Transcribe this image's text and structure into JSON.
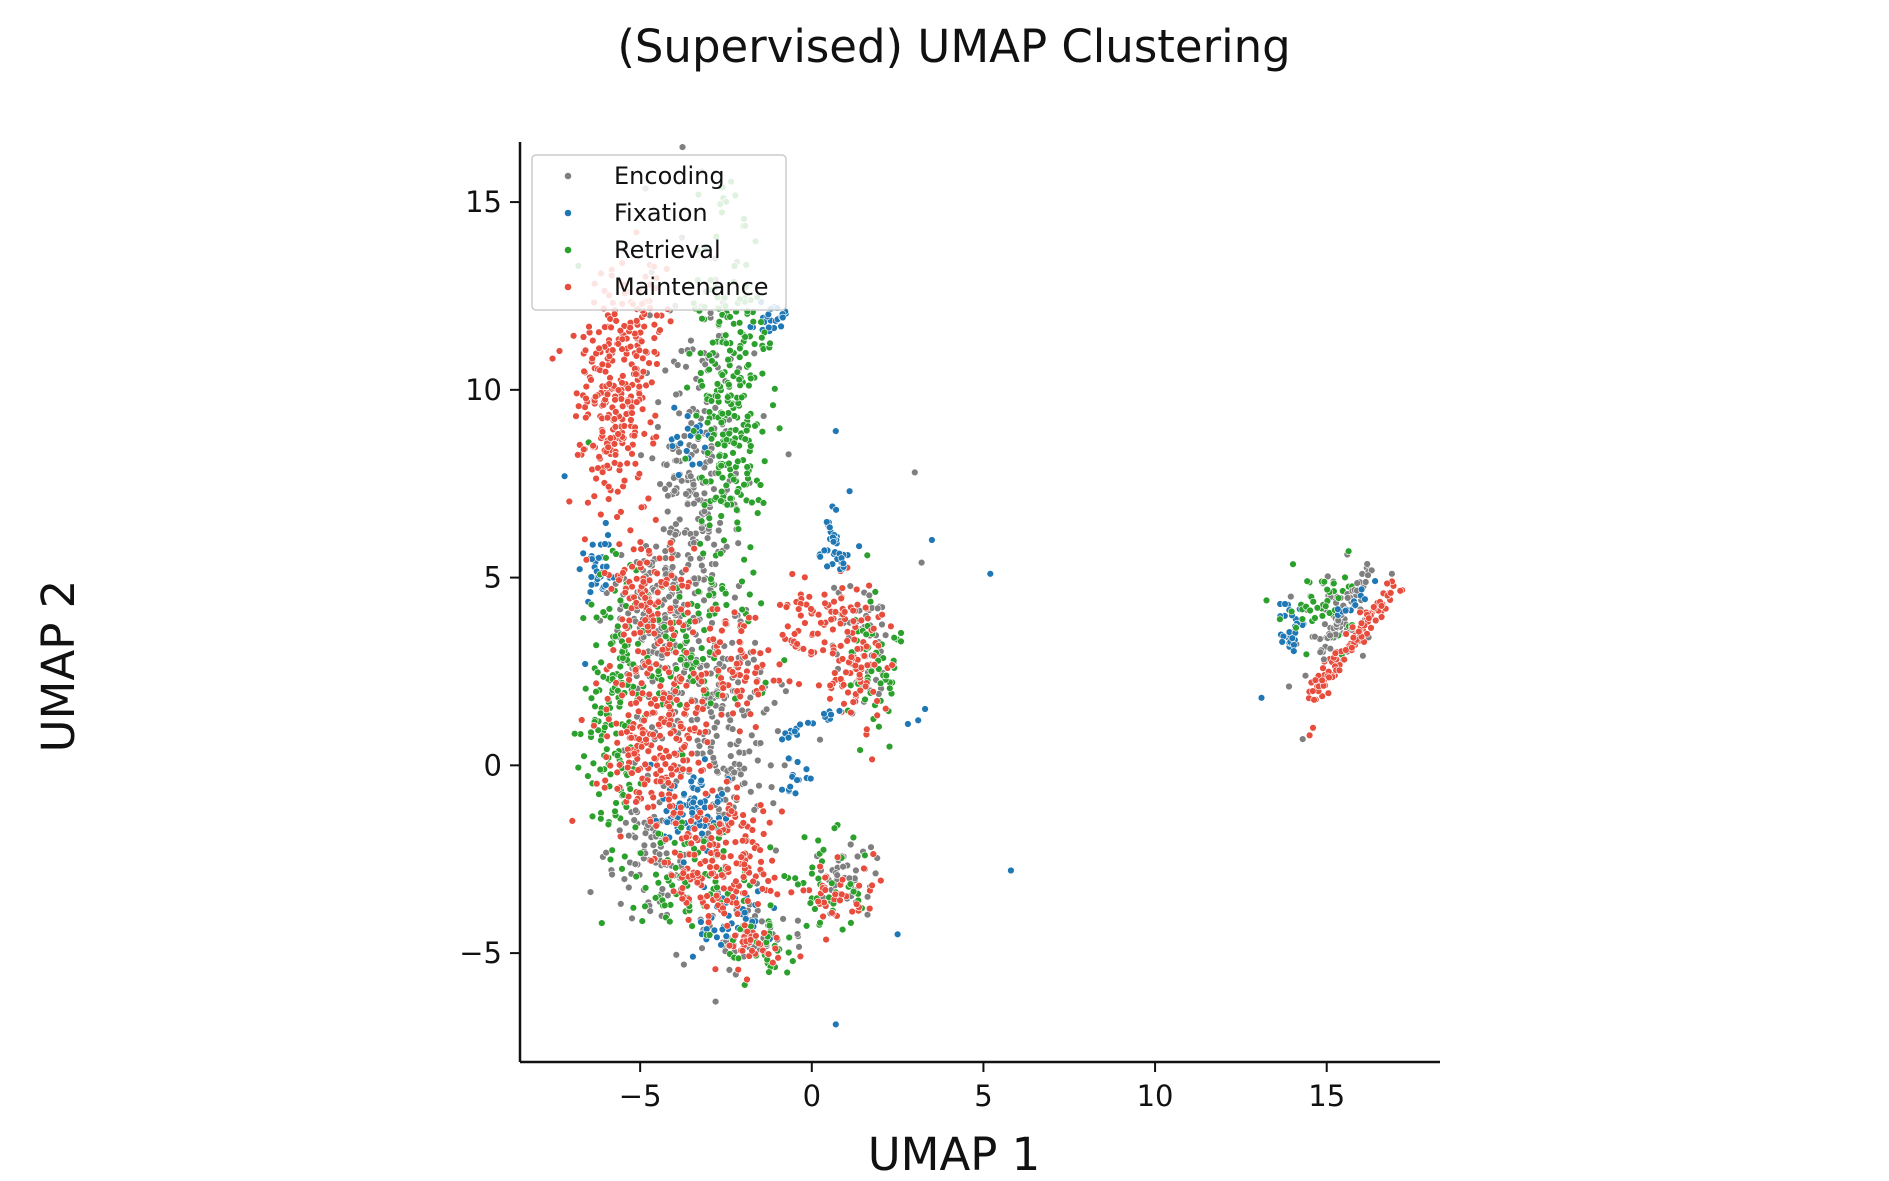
{
  "chart_data": {
    "type": "scatter",
    "title": "(Supervised) UMAP Clustering",
    "xlabel": "UMAP 1",
    "ylabel": "UMAP 2",
    "xlim": [
      -8.5,
      18.3
    ],
    "ylim": [
      -7.9,
      16.6
    ],
    "xticks": [
      -5,
      0,
      5,
      10,
      15
    ],
    "yticks": [
      -5,
      0,
      5,
      10,
      15
    ],
    "xtick_labels": [
      "−5",
      "0",
      "5",
      "10",
      "15"
    ],
    "ytick_labels": [
      "−5",
      "0",
      "5",
      "10",
      "15"
    ],
    "grid": false,
    "legend_position": "top-left",
    "series": [
      {
        "name": "Encoding",
        "color": "#7f7f7f",
        "clusters": [
          {
            "cx": -3.4,
            "cy": 7.2,
            "sx": 0.7,
            "sy": 2.8,
            "n": 260
          },
          {
            "cx": -2.6,
            "cy": 1.0,
            "sx": 0.9,
            "sy": 1.8,
            "n": 200
          },
          {
            "cx": -4.7,
            "cy": 3.8,
            "sx": 0.6,
            "sy": 1.3,
            "n": 120
          },
          {
            "cx": -4.6,
            "cy": -2.2,
            "sx": 0.6,
            "sy": 0.8,
            "n": 90
          },
          {
            "cx": -2.0,
            "cy": -4.5,
            "sx": 0.8,
            "sy": 0.5,
            "n": 50
          },
          {
            "cx": 1.4,
            "cy": 3.2,
            "sx": 0.4,
            "sy": 0.9,
            "n": 50
          },
          {
            "cx": 1.0,
            "cy": -2.9,
            "sx": 0.4,
            "sy": 0.4,
            "n": 45
          },
          {
            "cx": 15.3,
            "cy": 3.8,
            "sx": 0.6,
            "sy": 0.7,
            "n": 45
          }
        ],
        "points": [
          [
            3.0,
            7.8
          ],
          [
            3.2,
            5.4
          ],
          [
            14.3,
            0.7
          ],
          [
            16.9,
            5.1
          ],
          [
            13.9,
            2.1
          ],
          [
            -1.4,
            9.3
          ]
        ]
      },
      {
        "name": "Fixation",
        "color": "#1f77b4",
        "clusters": [
          {
            "cx": -6.2,
            "cy": 5.3,
            "sx": 0.25,
            "sy": 0.4,
            "n": 35
          },
          {
            "cx": -3.5,
            "cy": -1.2,
            "sx": 0.6,
            "sy": 0.5,
            "n": 80
          },
          {
            "cx": -2.5,
            "cy": -4.2,
            "sx": 0.6,
            "sy": 0.4,
            "n": 40
          },
          {
            "cx": -1.2,
            "cy": 11.9,
            "sx": 0.2,
            "sy": 0.2,
            "n": 25
          },
          {
            "cx": 14.0,
            "cy": 3.7,
            "sx": 0.2,
            "sy": 0.4,
            "n": 30
          },
          {
            "cx": 0.7,
            "cy": 5.9,
            "sx": 0.25,
            "sy": 0.5,
            "n": 20
          },
          {
            "cx": -3.6,
            "cy": 8.6,
            "sx": 0.3,
            "sy": 0.4,
            "n": 20
          },
          {
            "cx": -0.5,
            "cy": -0.4,
            "sx": 0.3,
            "sy": 0.3,
            "n": 15
          }
        ],
        "points": [
          [
            -7.2,
            7.7
          ],
          [
            0.7,
            8.9
          ],
          [
            1.1,
            7.3
          ],
          [
            3.5,
            6.0
          ],
          [
            5.2,
            5.1
          ],
          [
            5.8,
            -2.8
          ],
          [
            2.5,
            -4.5
          ],
          [
            0.7,
            -6.9
          ],
          [
            13.1,
            1.8
          ],
          [
            3.3,
            1.5
          ],
          [
            3.1,
            1.2
          ],
          [
            2.8,
            1.1
          ],
          [
            -6.6,
            2.7
          ],
          [
            -1.1,
            -3.8
          ],
          [
            -6.0,
            4.8
          ]
        ]
      },
      {
        "name": "Retrieval",
        "color": "#2ca02c",
        "clusters": [
          {
            "cx": -2.4,
            "cy": 9.7,
            "sx": 0.5,
            "sy": 2.5,
            "n": 280
          },
          {
            "cx": -5.7,
            "cy": 1.5,
            "sx": 0.5,
            "sy": 1.9,
            "n": 150
          },
          {
            "cx": -3.4,
            "cy": 3.2,
            "sx": 0.7,
            "sy": 1.0,
            "n": 80
          },
          {
            "cx": -3.5,
            "cy": -3.0,
            "sx": 0.9,
            "sy": 0.7,
            "n": 80
          },
          {
            "cx": 1.8,
            "cy": 2.6,
            "sx": 0.4,
            "sy": 0.9,
            "n": 55
          },
          {
            "cx": -1.3,
            "cy": -4.8,
            "sx": 0.5,
            "sy": 0.5,
            "n": 35
          },
          {
            "cx": 0.5,
            "cy": -3.2,
            "sx": 0.6,
            "sy": 0.6,
            "n": 40
          },
          {
            "cx": 14.9,
            "cy": 4.2,
            "sx": 0.6,
            "sy": 0.6,
            "n": 50
          }
        ],
        "points": [
          [
            -6.8,
            13.3
          ],
          [
            -3.3,
            15.2
          ],
          [
            2.4,
            3.4
          ],
          [
            2.6,
            3.3
          ],
          [
            -6.5,
            8.6
          ],
          [
            -0.8,
            2.8
          ]
        ]
      },
      {
        "name": "Maintenance",
        "color": "#e74c3c",
        "clusters": [
          {
            "cx": -5.8,
            "cy": 9.7,
            "sx": 0.55,
            "sy": 1.4,
            "n": 250
          },
          {
            "cx": -5.1,
            "cy": 12.0,
            "sx": 0.4,
            "sy": 0.8,
            "n": 60
          },
          {
            "cx": -4.8,
            "cy": 4.3,
            "sx": 0.6,
            "sy": 1.0,
            "n": 130
          },
          {
            "cx": -4.6,
            "cy": 0.6,
            "sx": 0.8,
            "sy": 1.1,
            "n": 220
          },
          {
            "cx": -2.7,
            "cy": -2.7,
            "sx": 0.9,
            "sy": 0.9,
            "n": 180
          },
          {
            "cx": -2.1,
            "cy": 2.5,
            "sx": 0.6,
            "sy": 0.7,
            "n": 70
          },
          {
            "cx": 0.5,
            "cy": 4.1,
            "sx": 0.5,
            "sy": 0.6,
            "n": 60
          },
          {
            "cx": 1.2,
            "cy": 2.6,
            "sx": 0.5,
            "sy": 0.9,
            "n": 80
          },
          {
            "cx": 0.8,
            "cy": -3.3,
            "sx": 0.5,
            "sy": 0.4,
            "n": 40
          },
          {
            "cx": -1.7,
            "cy": -4.8,
            "sx": 0.4,
            "sy": 0.3,
            "n": 30
          }
        ],
        "points": [
          [
            14.6,
            1.0
          ],
          [
            14.5,
            0.8
          ],
          [
            -0.7,
            3.7
          ],
          [
            -0.5,
            3.5
          ]
        ]
      }
    ],
    "streaks": [
      {
        "series": "Maintenance",
        "x0": 14.6,
        "y0": 1.9,
        "x1": 17.0,
        "y1": 4.8,
        "n": 110,
        "spread": 0.12
      },
      {
        "series": "Encoding",
        "x0": 14.8,
        "y0": 3.0,
        "x1": 16.3,
        "y1": 5.4,
        "n": 40,
        "spread": 0.1
      },
      {
        "series": "Fixation",
        "x0": 15.3,
        "y0": 4.0,
        "x1": 16.7,
        "y1": 5.0,
        "n": 12,
        "spread": 0.08
      },
      {
        "series": "Fixation",
        "x0": 0.5,
        "y0": 6.5,
        "x1": 0.9,
        "y1": 5.2,
        "n": 18,
        "spread": 0.06
      },
      {
        "series": "Fixation",
        "x0": -0.9,
        "y0": 0.8,
        "x1": 0.8,
        "y1": 1.4,
        "n": 20,
        "spread": 0.08
      },
      {
        "series": "Maintenance",
        "x0": -1.0,
        "y0": 3.6,
        "x1": -0.2,
        "y1": 3.1,
        "n": 10,
        "spread": 0.05
      }
    ]
  }
}
